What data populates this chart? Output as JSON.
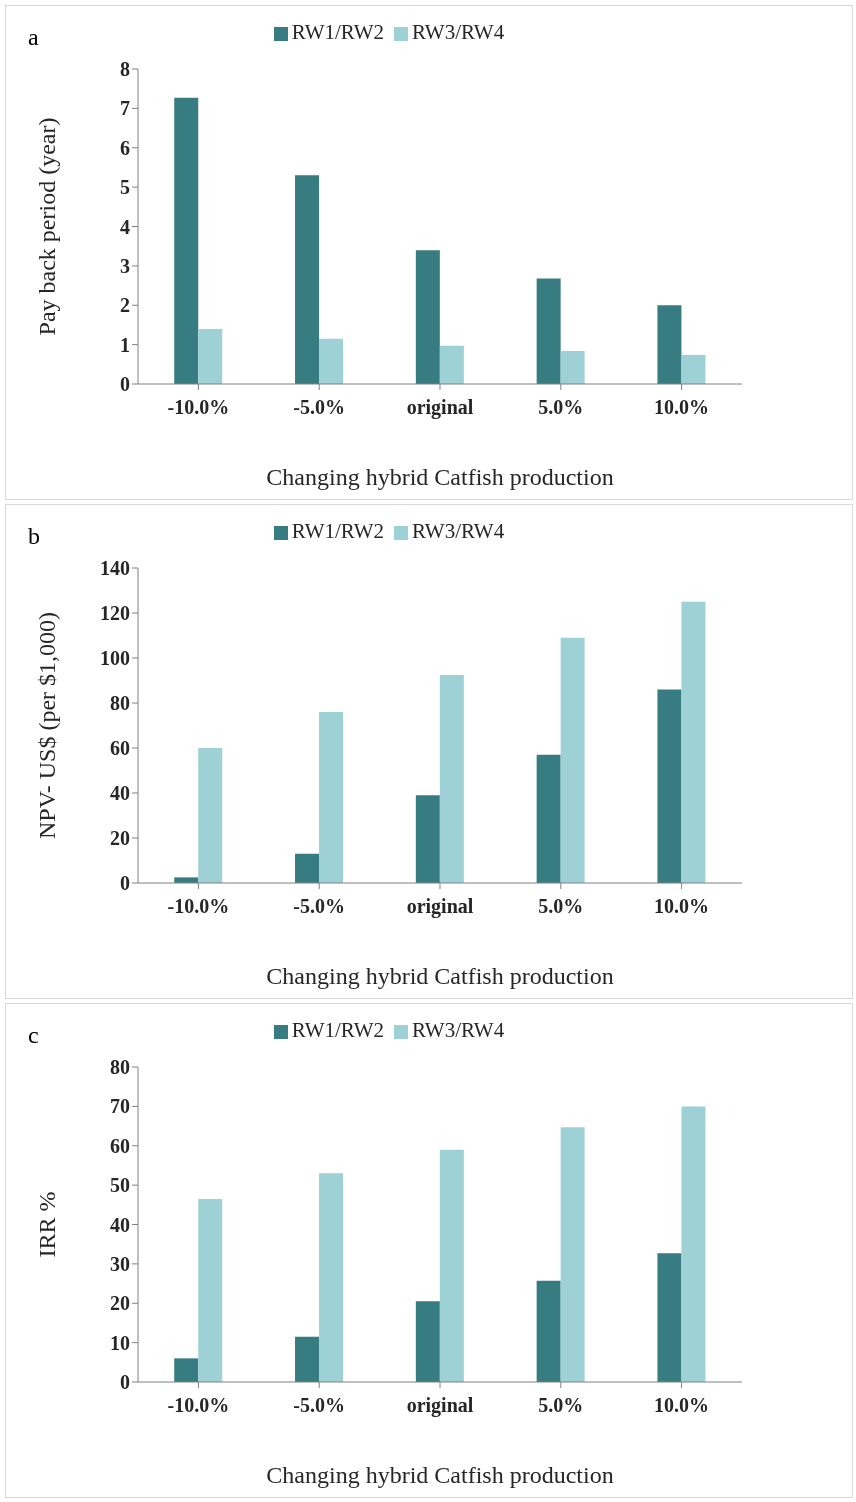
{
  "chart_data": [
    {
      "type": "bar",
      "annotations": [
        "a"
      ],
      "categories": [
        "-10.0%",
        "-5.0%",
        "original",
        "5.0%",
        "10.0%"
      ],
      "xlabel": "Changing hybrid Catfish production",
      "ylabel": "Pay back period (year)",
      "ylim": [
        0,
        8
      ],
      "yticks": [
        0,
        1,
        2,
        3,
        4,
        5,
        6,
        7,
        8
      ],
      "legend": "top",
      "grid": false,
      "series": [
        {
          "name": "RW1/RW2",
          "color": "#367c80",
          "values": [
            7.27,
            5.3,
            3.4,
            2.68,
            2.0
          ]
        },
        {
          "name": "RW3/RW4",
          "color": "#9dd1d5",
          "values": [
            1.4,
            1.15,
            0.97,
            0.84,
            0.74
          ]
        }
      ]
    },
    {
      "type": "bar",
      "annotations": [
        "b"
      ],
      "categories": [
        "-10.0%",
        "-5.0%",
        "original",
        "5.0%",
        "10.0%"
      ],
      "xlabel": "Changing hybrid Catfish production",
      "ylabel": "NPV- US$ (per $1,000)",
      "ylim": [
        0,
        140
      ],
      "yticks": [
        0,
        20,
        40,
        60,
        80,
        100,
        120,
        140
      ],
      "legend": "top",
      "grid": false,
      "series": [
        {
          "name": "RW1/RW2",
          "color": "#367c80",
          "values": [
            2.5,
            13,
            39,
            57,
            86
          ]
        },
        {
          "name": "RW3/RW4",
          "color": "#9dd1d5",
          "values": [
            60,
            76,
            92.5,
            109,
            125
          ]
        }
      ]
    },
    {
      "type": "bar",
      "annotations": [
        "c"
      ],
      "categories": [
        "-10.0%",
        "-5.0%",
        "original",
        "5.0%",
        "10.0%"
      ],
      "xlabel": "Changing hybrid Catfish production",
      "ylabel": "IRR %",
      "ylim": [
        0,
        80
      ],
      "yticks": [
        0,
        10,
        20,
        30,
        40,
        50,
        60,
        70,
        80
      ],
      "legend": "top",
      "grid": false,
      "series": [
        {
          "name": "RW1/RW2",
          "color": "#367c80",
          "values": [
            6,
            11.5,
            20.5,
            25.7,
            32.7
          ]
        },
        {
          "name": "RW3/RW4",
          "color": "#9dd1d5",
          "values": [
            46.5,
            53,
            59,
            64.7,
            70
          ]
        }
      ]
    }
  ]
}
